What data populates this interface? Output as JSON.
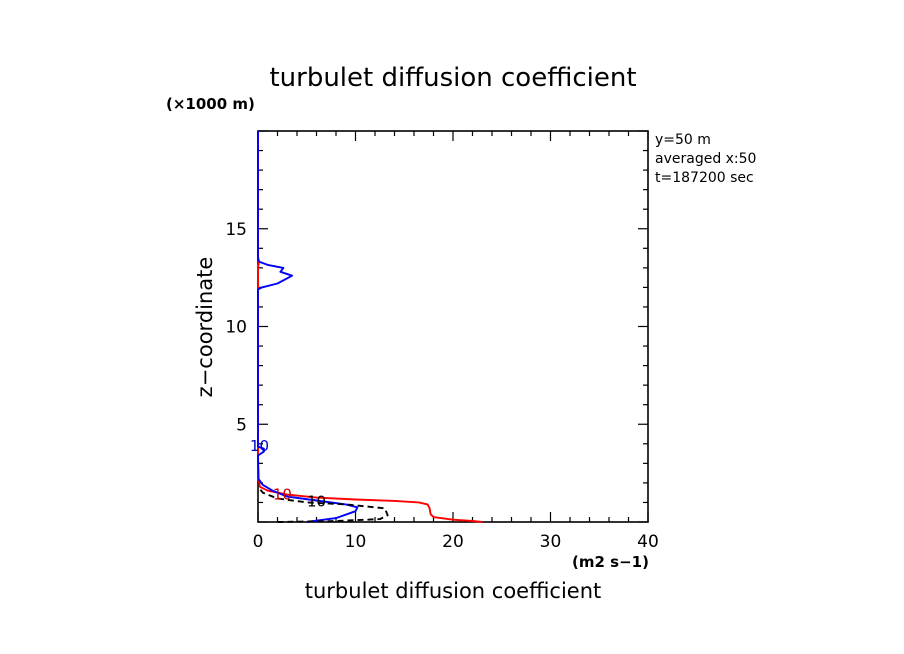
{
  "chart_data": {
    "type": "line",
    "title": "turbulet diffusion coefficient",
    "xlabel": "turbulet diffusion coefficient",
    "xunit": "(m2 s−1)",
    "ylabel": "z−coordinate",
    "yunit": "(×1000 m)",
    "xlim": [
      0,
      40
    ],
    "ylim": [
      0,
      20
    ],
    "xticks": [
      "0",
      "10",
      "20",
      "30",
      "40"
    ],
    "yticks": [
      "5",
      "10",
      "15"
    ],
    "annotations": [
      "y=50 m",
      "averaged  x:50",
      "t=187200 sec"
    ],
    "curve_labels": [
      {
        "text": "10",
        "x": 2.5,
        "y": 1.4,
        "color": "#cc0000"
      },
      {
        "text": "10",
        "x": 6.0,
        "y": 1.05,
        "color": "#000000"
      },
      {
        "text": "10",
        "x": 0.15,
        "y": 3.9,
        "color": "#0000cc"
      }
    ],
    "series": [
      {
        "color": "#ff0000",
        "style": "solid",
        "points": [
          [
            23.0,
            0
          ],
          [
            22.0,
            0.05
          ],
          [
            20.0,
            0.12
          ],
          [
            18.0,
            0.25
          ],
          [
            17.7,
            0.4
          ],
          [
            17.6,
            0.7
          ],
          [
            17.4,
            0.9
          ],
          [
            16.5,
            1.0
          ],
          [
            14.0,
            1.08
          ],
          [
            10.0,
            1.15
          ],
          [
            6.0,
            1.25
          ],
          [
            3.0,
            1.4
          ],
          [
            1.0,
            1.6
          ],
          [
            0.2,
            1.8
          ],
          [
            0.05,
            2.2
          ],
          [
            0.0,
            3.0
          ],
          [
            0.0,
            13.0
          ],
          [
            0.1,
            13.3
          ],
          [
            0.0,
            13.6
          ],
          [
            0.0,
            20.0
          ]
        ]
      },
      {
        "color": "#0000ff",
        "style": "solid",
        "points": [
          [
            5.0,
            0
          ],
          [
            8.0,
            0.2
          ],
          [
            10.0,
            0.55
          ],
          [
            10.2,
            0.75
          ],
          [
            9.0,
            0.9
          ],
          [
            6.0,
            1.1
          ],
          [
            3.0,
            1.3
          ],
          [
            1.5,
            1.6
          ],
          [
            0.5,
            1.9
          ],
          [
            0.05,
            2.2
          ],
          [
            0.0,
            3.4
          ],
          [
            0.6,
            3.6
          ],
          [
            0.6,
            3.75
          ],
          [
            0.0,
            3.85
          ],
          [
            0.0,
            11.9
          ],
          [
            0.4,
            12.0
          ],
          [
            2.0,
            12.2
          ],
          [
            3.5,
            12.6
          ],
          [
            2.3,
            12.8
          ],
          [
            2.6,
            13.0
          ],
          [
            1.0,
            13.15
          ],
          [
            0.2,
            13.3
          ],
          [
            0.0,
            13.4
          ],
          [
            0.0,
            20.0
          ]
        ]
      },
      {
        "color": "#000000",
        "style": "dashed",
        "points": [
          [
            2.0,
            0
          ],
          [
            8.0,
            0.05
          ],
          [
            12.5,
            0.15
          ],
          [
            13.3,
            0.35
          ],
          [
            13.0,
            0.7
          ],
          [
            9.0,
            0.9
          ],
          [
            5.0,
            1.0
          ],
          [
            2.0,
            1.2
          ],
          [
            0.5,
            1.5
          ],
          [
            0.0,
            1.8
          ]
        ]
      }
    ]
  }
}
